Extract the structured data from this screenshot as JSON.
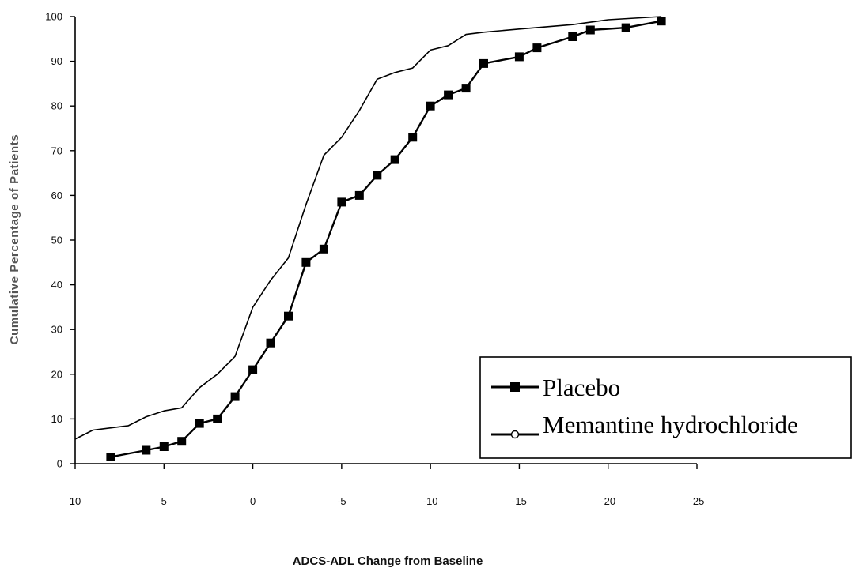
{
  "chart_data": {
    "type": "line",
    "title": "",
    "xlabel": "ADCS-ADL Change from Baseline",
    "ylabel": "Cumulative Percentage of Patients",
    "xlim": [
      10,
      -25
    ],
    "ylim": [
      0,
      100
    ],
    "x_ticks": [
      10,
      5,
      0,
      -5,
      -10,
      -15,
      -20,
      -25
    ],
    "y_ticks": [
      0,
      10,
      20,
      30,
      40,
      50,
      60,
      70,
      80,
      90,
      100
    ],
    "grid": false,
    "legend_position": "bottom-right",
    "series": [
      {
        "name": "Placebo",
        "marker": "square",
        "color": "#000000",
        "x": [
          8,
          6,
          5,
          4,
          3,
          2,
          1,
          0,
          -1,
          -2,
          -3,
          -4,
          -5,
          -6,
          -7,
          -8,
          -9,
          -10,
          -11,
          -12,
          -13,
          -15,
          -16,
          -18,
          -19,
          -21,
          -23
        ],
        "y": [
          1.5,
          3,
          3.8,
          5,
          9,
          10,
          15,
          21,
          27,
          33,
          45,
          48,
          58.5,
          60,
          64.5,
          68,
          73,
          80,
          82.5,
          84,
          89.5,
          91,
          93,
          95.5,
          97,
          97.5,
          99
        ]
      },
      {
        "name": "Memantine hydrochloride",
        "marker": "none",
        "color": "#000000",
        "x": [
          10,
          9,
          7,
          6,
          5,
          4,
          3,
          2,
          1,
          0,
          -1,
          -2,
          -3,
          -4,
          -5,
          -6,
          -7,
          -8,
          -9,
          -10,
          -11,
          -12,
          -13,
          -15,
          -18,
          -20,
          -23
        ],
        "y": [
          5.5,
          7.5,
          8.5,
          10.5,
          11.8,
          12.5,
          17,
          20,
          24,
          35,
          41,
          46,
          58,
          69,
          73,
          79,
          86,
          87.5,
          88.5,
          92.5,
          93.5,
          96,
          96.5,
          97.2,
          98.2,
          99.3,
          100
        ]
      }
    ]
  }
}
